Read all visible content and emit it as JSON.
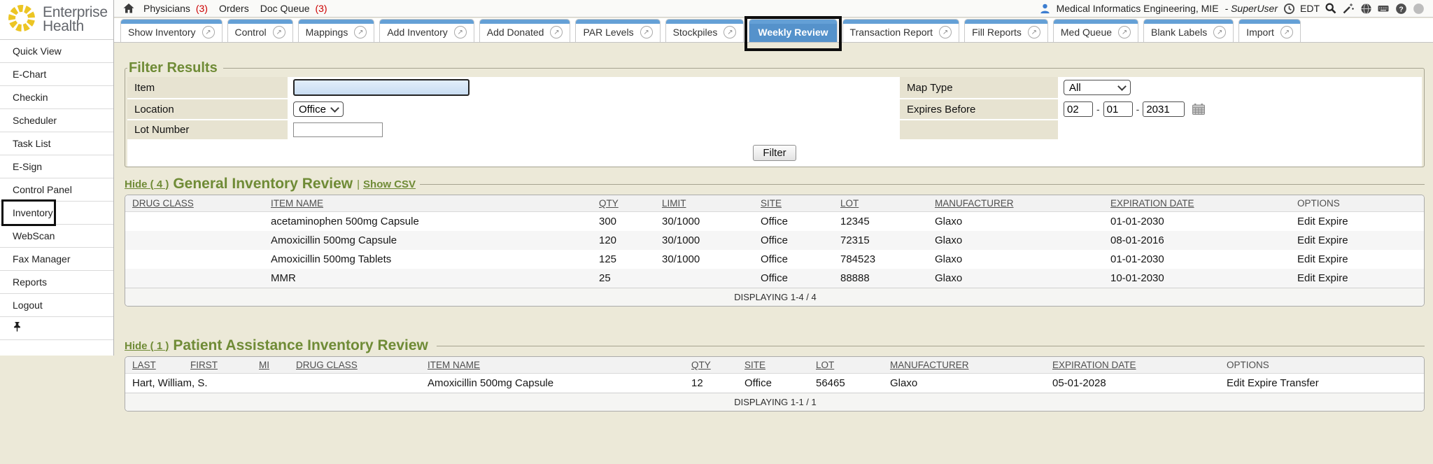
{
  "annotations": {
    "boxed_tab": "Weekly Review",
    "boxed_sidebar_item": "Inventory"
  },
  "colors": {
    "accent_blue": "#5592cb",
    "tab_bar_blue": "#64a0d6",
    "olive_green": "#6f8b36",
    "count_red": "#cc0000",
    "page_beige": "#ece9d8",
    "label_beige": "#e7e3d1"
  },
  "logo": {
    "line1": "Enterprise",
    "line2": "Health"
  },
  "topbar": {
    "nav": [
      {
        "label": "Physicians",
        "count": "(3)"
      },
      {
        "label": "Orders",
        "count": ""
      },
      {
        "label": "Doc Queue",
        "count": "(3)"
      }
    ],
    "user_name": "Medical Informatics Engineering, MIE",
    "user_role": "- SuperUser",
    "timezone": "EDT"
  },
  "sidebar": {
    "items": [
      "Quick View",
      "E-Chart",
      "Checkin",
      "Scheduler",
      "Task List",
      "E-Sign",
      "Control Panel",
      "Inventory",
      "WebScan",
      "Fax Manager",
      "Reports",
      "Logout"
    ]
  },
  "tabs": [
    {
      "label": "Show Inventory",
      "icon": true,
      "active": false
    },
    {
      "label": "Control",
      "icon": true,
      "active": false
    },
    {
      "label": "Mappings",
      "icon": true,
      "active": false
    },
    {
      "label": "Add Inventory",
      "icon": true,
      "active": false
    },
    {
      "label": "Add Donated",
      "icon": true,
      "active": false
    },
    {
      "label": "PAR Levels",
      "icon": true,
      "active": false
    },
    {
      "label": "Stockpiles",
      "icon": true,
      "active": false
    },
    {
      "label": "Weekly Review",
      "icon": false,
      "active": true
    },
    {
      "label": "Transaction Report",
      "icon": true,
      "active": false
    },
    {
      "label": "Fill Reports",
      "icon": true,
      "active": false
    },
    {
      "label": "Med Queue",
      "icon": true,
      "active": false
    },
    {
      "label": "Blank Labels",
      "icon": true,
      "active": false
    },
    {
      "label": "Import",
      "icon": true,
      "active": false
    }
  ],
  "filter": {
    "legend": "Filter Results",
    "item_label": "Item",
    "item_value": "",
    "location_label": "Location",
    "location_value": "Office",
    "lot_label": "Lot Number",
    "lot_value": "",
    "map_type_label": "Map Type",
    "map_type_value": "All",
    "expires_label": "Expires Before",
    "expires_month": "02",
    "expires_day": "01",
    "expires_year": "2031",
    "button_label": "Filter"
  },
  "general_review": {
    "hide_label": "Hide ( 4 )",
    "title": "General Inventory Review",
    "separator": "|",
    "csv_label": "Show CSV",
    "columns": [
      {
        "label": "DRUG CLASS",
        "sortable": true
      },
      {
        "label": "ITEM NAME",
        "sortable": true
      },
      {
        "label": "QTY",
        "sortable": true
      },
      {
        "label": "LIMIT",
        "sortable": true
      },
      {
        "label": "SITE",
        "sortable": true
      },
      {
        "label": "LOT",
        "sortable": true
      },
      {
        "label": "MANUFACTURER",
        "sortable": true
      },
      {
        "label": "EXPIRATION DATE",
        "sortable": true
      },
      {
        "label": "OPTIONS",
        "sortable": false
      }
    ],
    "rows": [
      [
        "",
        "acetaminophen 500mg Capsule",
        "300",
        "30/1000",
        "Office",
        "12345",
        "Glaxo",
        "01-01-2030",
        "Edit Expire"
      ],
      [
        "",
        "Amoxicillin 500mg Capsule",
        "120",
        "30/1000",
        "Office",
        "72315",
        "Glaxo",
        "08-01-2016",
        "Edit Expire"
      ],
      [
        "",
        "Amoxicillin 500mg Tablets",
        "125",
        "30/1000",
        "Office",
        "784523",
        "Glaxo",
        "01-01-2030",
        "Edit Expire"
      ],
      [
        "",
        "MMR",
        "25",
        "",
        "Office",
        "88888",
        "Glaxo",
        "10-01-2030",
        "Edit Expire"
      ]
    ],
    "footer": "DISPLAYING 1-4 / 4"
  },
  "patient_review": {
    "hide_label": "Hide ( 1 )",
    "title": "Patient Assistance Inventory Review",
    "columns": [
      {
        "label": "LAST",
        "sortable": true
      },
      {
        "label": "FIRST",
        "sortable": true
      },
      {
        "label": "MI",
        "sortable": true
      },
      {
        "label": "DRUG CLASS",
        "sortable": true
      },
      {
        "label": "ITEM NAME",
        "sortable": true
      },
      {
        "label": "QTY",
        "sortable": true
      },
      {
        "label": "SITE",
        "sortable": true
      },
      {
        "label": "LOT",
        "sortable": true
      },
      {
        "label": "MANUFACTURER",
        "sortable": true
      },
      {
        "label": "EXPIRATION DATE",
        "sortable": true
      },
      {
        "label": "OPTIONS",
        "sortable": false
      }
    ],
    "rows": [
      [
        "Hart, William, S.",
        "",
        "",
        "",
        "Amoxicillin 500mg Capsule",
        "12",
        "Office",
        "56465",
        "Glaxo",
        "05-01-2028",
        "Edit Expire Transfer"
      ]
    ],
    "footer": "DISPLAYING 1-1 / 1"
  }
}
